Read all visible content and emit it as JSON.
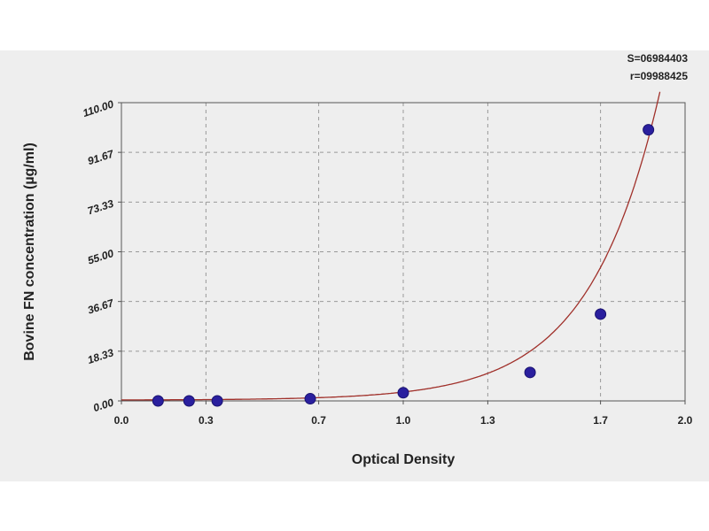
{
  "chart_data": {
    "type": "scatter",
    "title": "",
    "xlabel": "Optical Density",
    "ylabel": "Bovine FN concentration (µg/ml)",
    "xlim": [
      0.0,
      2.0
    ],
    "ylim": [
      0.0,
      110.0
    ],
    "x_ticks": [
      "0.0",
      "0.3",
      "0.7",
      "1.0",
      "1.3",
      "1.7",
      "2.0"
    ],
    "y_ticks": [
      "0.00",
      "18.33",
      "36.67",
      "55.00",
      "73.33",
      "91.67",
      "110.00"
    ],
    "grid": true,
    "points": [
      {
        "x": 0.13,
        "y": 0.0
      },
      {
        "x": 0.24,
        "y": 0.0
      },
      {
        "x": 0.34,
        "y": 0.0
      },
      {
        "x": 0.67,
        "y": 0.8
      },
      {
        "x": 1.0,
        "y": 3.0
      },
      {
        "x": 1.45,
        "y": 10.5
      },
      {
        "x": 1.7,
        "y": 32.0
      },
      {
        "x": 1.87,
        "y": 100.0
      }
    ],
    "fit_curve": "exponential",
    "stats": [
      "S=06984403",
      "r=09988425"
    ],
    "colors": {
      "points": "#2a1f9e",
      "curve": "#a0302a",
      "grid": "#999999"
    }
  }
}
